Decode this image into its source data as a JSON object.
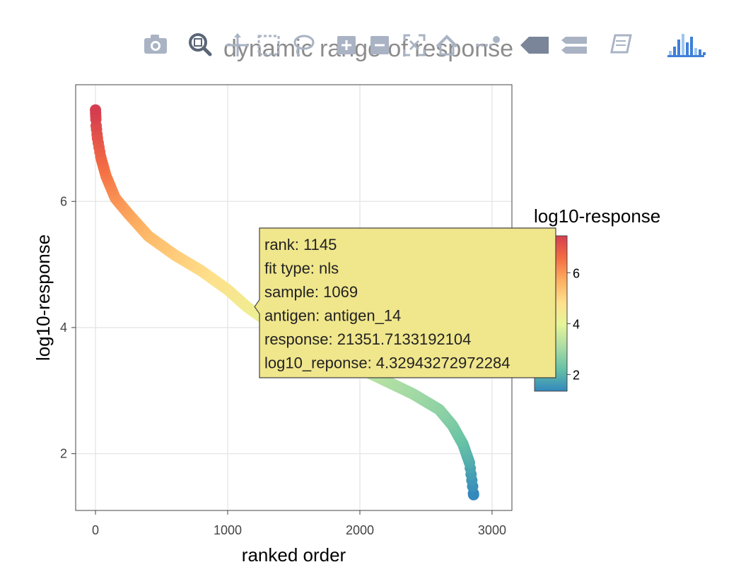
{
  "modebar": {
    "buttons": [
      {
        "name": "camera-icon",
        "title": "Download plot as a png"
      },
      {
        "name": "zoom-icon",
        "title": "Zoom"
      },
      {
        "name": "pan-icon",
        "title": "Pan"
      },
      {
        "name": "box-select-icon",
        "title": "Box Select"
      },
      {
        "name": "lasso-select-icon",
        "title": "Lasso Select"
      },
      {
        "name": "zoom-in-icon",
        "title": "Zoom in"
      },
      {
        "name": "zoom-out-icon",
        "title": "Zoom out"
      },
      {
        "name": "autoscale-icon",
        "title": "Autoscale"
      },
      {
        "name": "reset-axes-icon",
        "title": "Reset axes"
      },
      {
        "name": "spike-lines-icon",
        "title": "Toggle Spike Lines"
      },
      {
        "name": "hover-closest-icon",
        "title": "Show closest data on hover"
      },
      {
        "name": "hover-compare-icon",
        "title": "Compare data on hover"
      },
      {
        "name": "edit-in-cloud-icon",
        "title": "Edit in Chart Studio"
      },
      {
        "name": "plotly-logo-icon",
        "title": "Produced with Plotly"
      }
    ]
  },
  "chart_data": {
    "type": "scatter",
    "title": "dynamic range of response",
    "xlabel": "ranked order",
    "ylabel": "log10-response",
    "xlim": [
      -150,
      3150
    ],
    "ylim": [
      1.1,
      7.85
    ],
    "x_ticks": [
      0,
      1000,
      2000,
      3000
    ],
    "x_tick_labels": [
      "0",
      "1000",
      "2000",
      "3000"
    ],
    "y_ticks": [
      2,
      4,
      6
    ],
    "y_tick_labels": [
      "2",
      "4",
      "6"
    ],
    "grid": true,
    "n_points": 2860,
    "curve_anchors": {
      "x": [
        0,
        5,
        15,
        40,
        80,
        150,
        250,
        400,
        600,
        800,
        1000,
        1145,
        1300,
        1500,
        1800,
        2100,
        2400,
        2600,
        2700,
        2780,
        2830,
        2855,
        2860
      ],
      "y": [
        7.45,
        7.2,
        7.0,
        6.7,
        6.4,
        6.05,
        5.8,
        5.45,
        5.15,
        4.9,
        4.6,
        4.33,
        4.1,
        3.85,
        3.55,
        3.25,
        2.95,
        2.7,
        2.45,
        2.15,
        1.85,
        1.45,
        1.35
      ]
    },
    "colorbar": {
      "title": "log10-response",
      "range": [
        1.35,
        7.45
      ],
      "ticks": [
        2,
        4,
        6
      ],
      "tick_labels": [
        "2",
        "4",
        "6"
      ],
      "colorscale": [
        "#3288bd",
        "#66c2a5",
        "#abdda4",
        "#e6f598",
        "#fee08b",
        "#fdae61",
        "#f46d43",
        "#d53e4f"
      ]
    },
    "hover": {
      "point_x": 1145,
      "point_y": 4.33,
      "lines": [
        "rank: 1145",
        "fit type: nls",
        "sample: 1069",
        "antigen: antigen_14",
        "response: 21351.7133192104",
        "log10_reponse: 4.32943272972284"
      ],
      "background": "#f0e68c"
    }
  }
}
